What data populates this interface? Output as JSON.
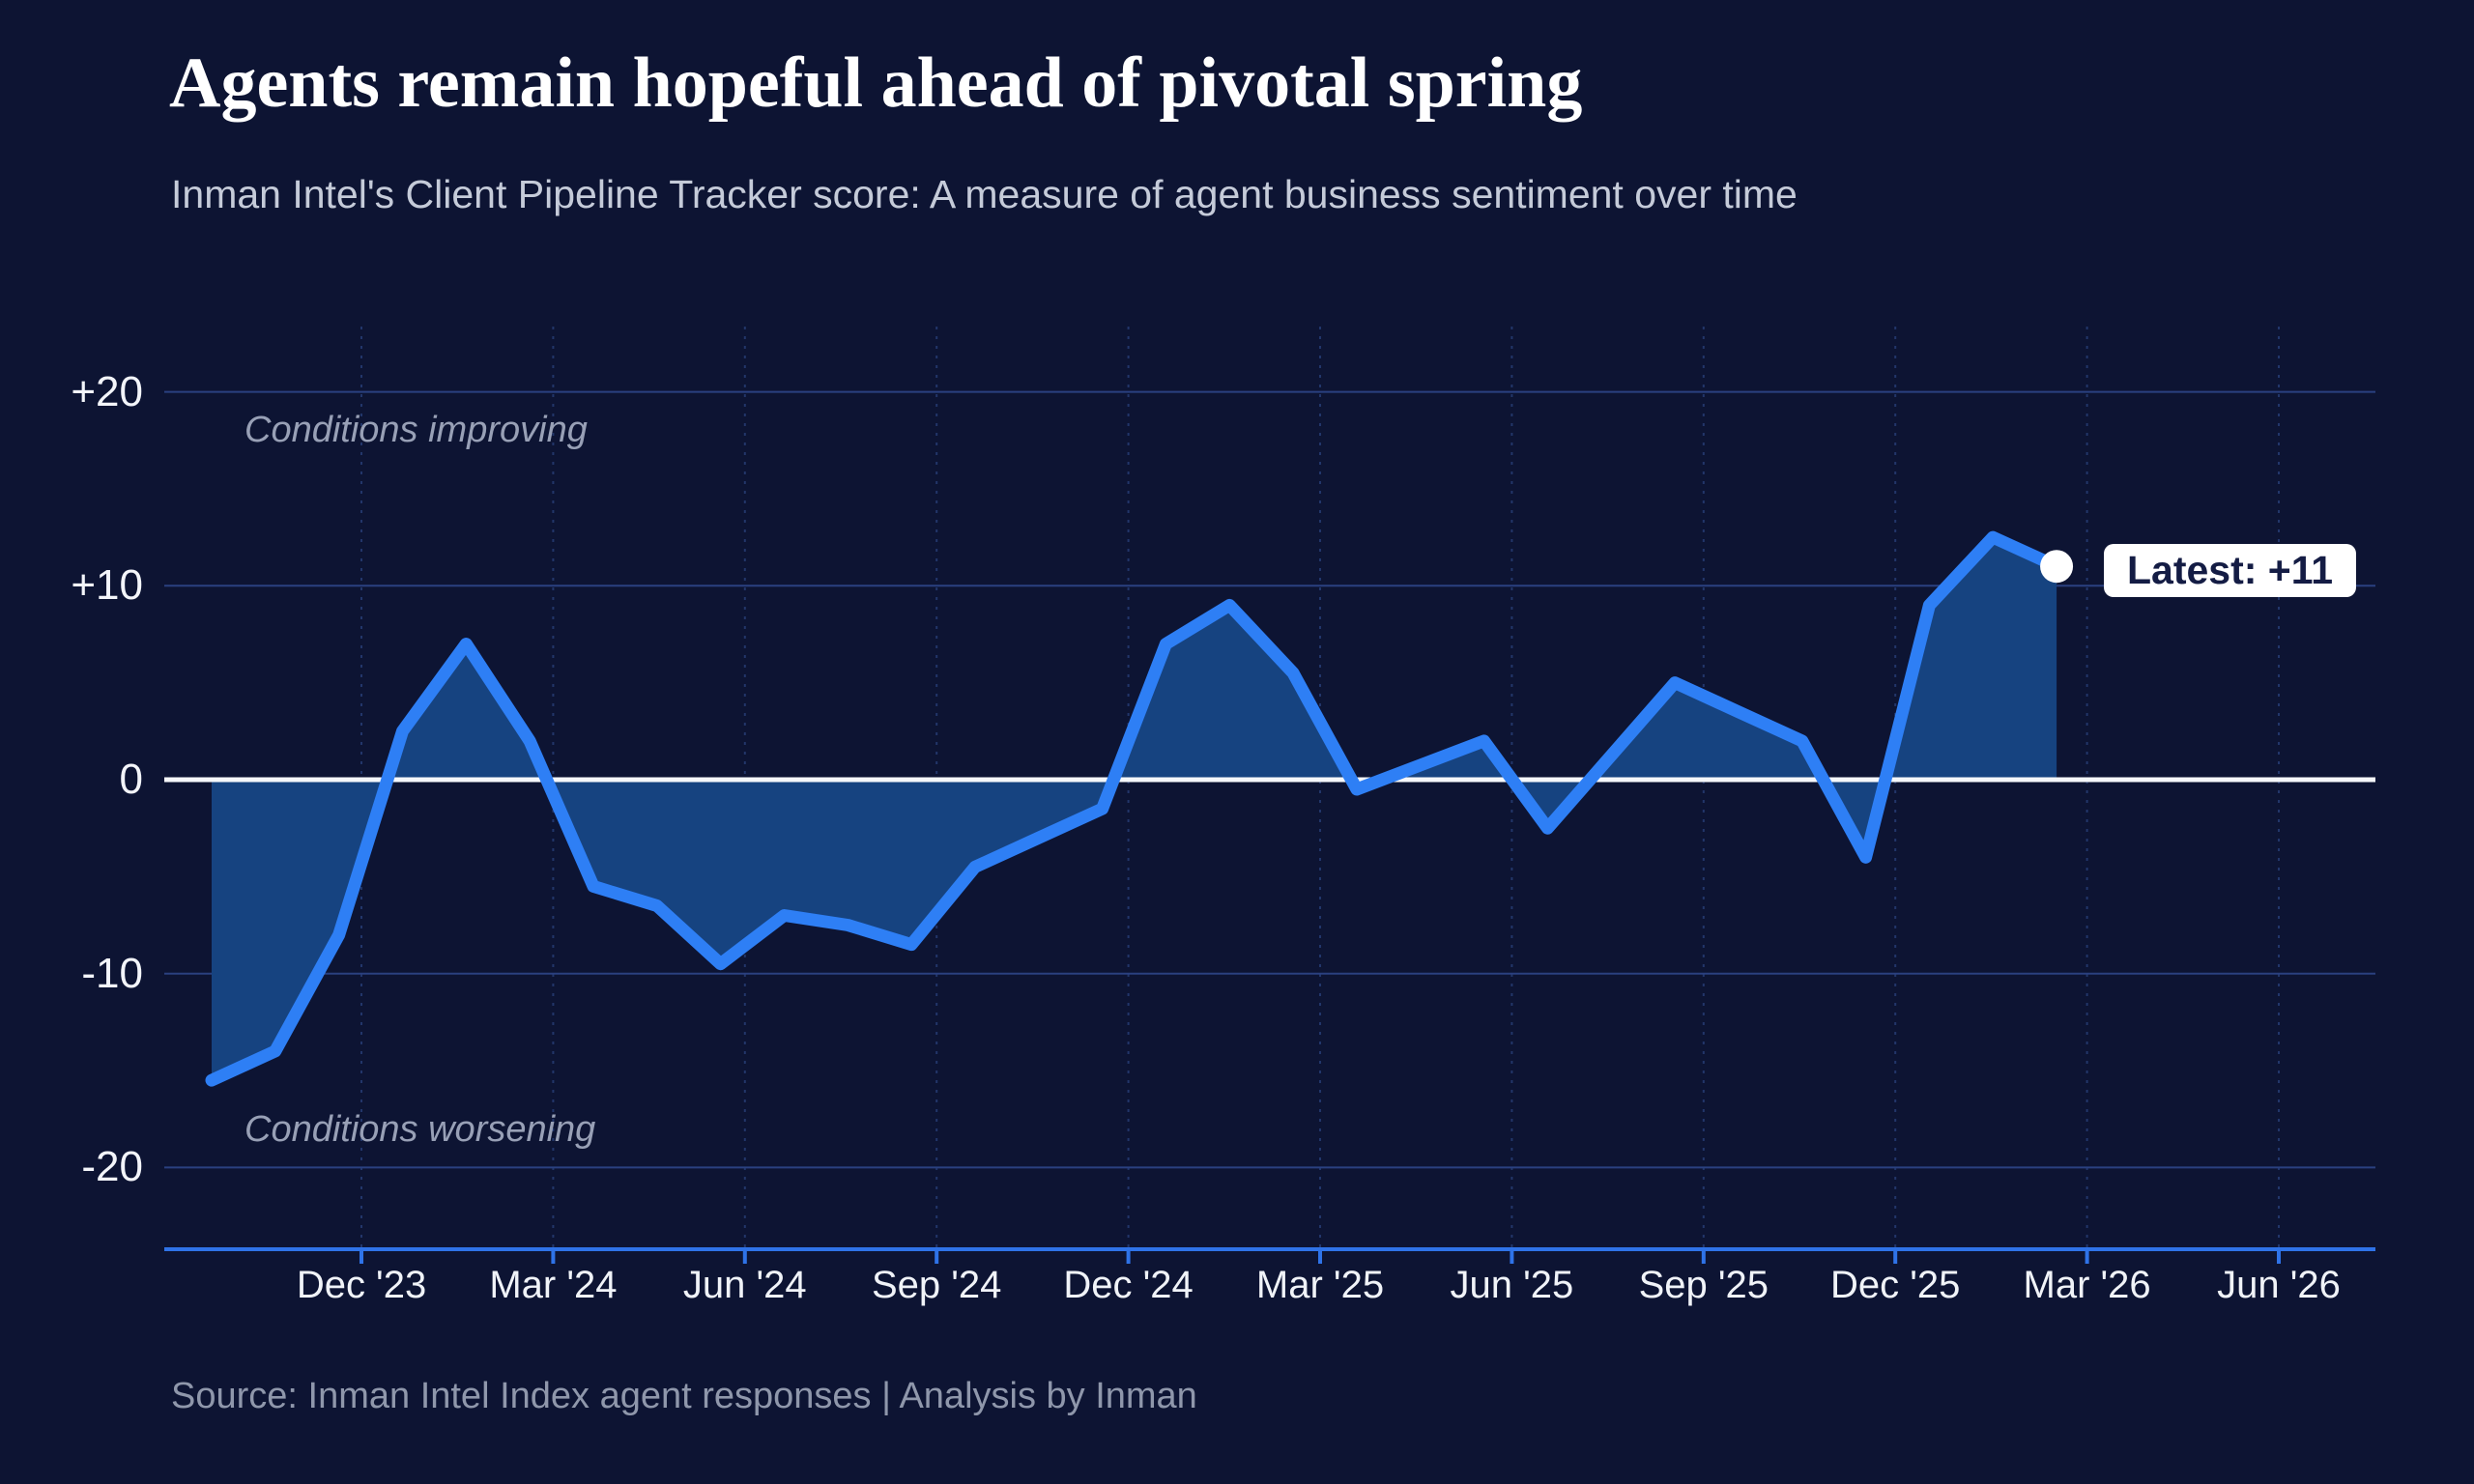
{
  "header": {
    "title": "Agents remain hopeful ahead of pivotal spring",
    "subtitle": "Inman Intel's Client Pipeline Tracker score: A measure of agent business sentiment over time"
  },
  "footer": {
    "source": "Source: Inman Intel Index agent responses | Analysis by Inman"
  },
  "latest_badge": {
    "text": "Latest: +11"
  },
  "annotations": {
    "improving": "Conditions improving",
    "worsening": "Conditions worsening"
  },
  "colors": {
    "background": "#0D1433",
    "line": "#2E7FF5",
    "area_fill": "#164380",
    "zero_line": "#F5F7FA",
    "gridline": "#2A4080",
    "vertical_gridline": "#22366A",
    "axis_line": "#2F73E8",
    "badge_background": "#FFFFFF",
    "badge_text": "#141C44",
    "latest_dot": "#FFFFFF"
  },
  "chart_data": {
    "type": "area",
    "title": "Agents remain hopeful ahead of pivotal spring",
    "subtitle": "Inman Intel's Client Pipeline Tracker score: A measure of agent business sentiment over time",
    "x": [
      "Oct '23",
      "Nov '23",
      "Dec '23",
      "Jan '24",
      "Feb '24",
      "Mar '24",
      "Apr '24",
      "May '24",
      "Jun '24",
      "Jul '24",
      "Aug '24",
      "Sep '24",
      "Oct '24",
      "Nov '24",
      "Dec '24",
      "Jan '25",
      "Feb '25",
      "Mar '25",
      "Apr '25",
      "May '25",
      "Jun '25",
      "Jul '25",
      "Aug '25",
      "Sep '25",
      "Oct '25",
      "Nov '25",
      "Dec '25",
      "Jan '26",
      "Feb '26",
      "Mar '26"
    ],
    "series": [
      {
        "name": "Client Pipeline Tracker score",
        "values": [
          -15.5,
          -14,
          -8,
          2.5,
          7,
          2,
          -5.5,
          -6.5,
          -9.5,
          -7,
          -7.5,
          -8.5,
          -4.5,
          -3,
          -1.5,
          7,
          9,
          5.5,
          -0.5,
          0.75,
          2,
          -2.5,
          1.25,
          5,
          3.5,
          2,
          -4,
          9,
          12.5,
          11
        ]
      }
    ],
    "baseline": 0,
    "ylim": [
      -24,
      24
    ],
    "xlabel": "",
    "ylabel": "",
    "y_ticks": [
      {
        "label": "+20",
        "value": 20
      },
      {
        "label": "+10",
        "value": 10
      },
      {
        "label": "0",
        "value": 0
      },
      {
        "label": "-10",
        "value": -10
      },
      {
        "label": "-20",
        "value": -20
      }
    ],
    "x_tick_labels": [
      "Dec '23",
      "Mar '24",
      "Jun '24",
      "Sep '24",
      "Dec '24",
      "Mar '25",
      "Jun '25",
      "Sep '25",
      "Dec '25",
      "Mar '26",
      "Jun '26"
    ],
    "grid": "horizontal solid lines at 10-unit intervals; dotted vertical lines at quarterly ticks; white emphasized line at 0",
    "legend_position": "none",
    "annotations": [
      "Conditions improving",
      "Conditions worsening"
    ],
    "latest": {
      "label": "Latest: +11",
      "value": 11,
      "month": "Mar '26"
    }
  }
}
